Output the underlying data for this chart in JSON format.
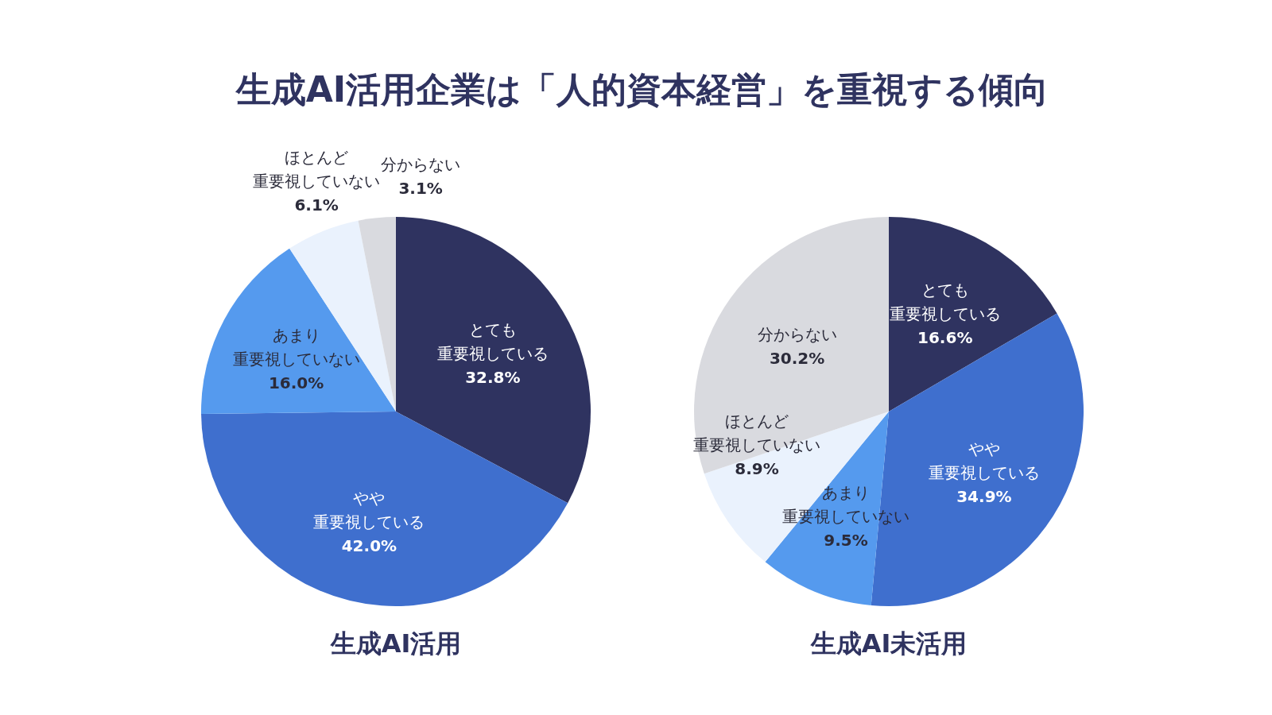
{
  "chart_data": [
    {
      "type": "pie",
      "title": "生成AI活用",
      "annotations": [
        "生成AI活用企業は「人的資本経営」を重視する傾向"
      ],
      "categories": [
        "とても重要視している",
        "やや重要視している",
        "あまり重要視していない",
        "ほとんど重要視していない",
        "分からない"
      ],
      "values": [
        32.8,
        42.0,
        16.0,
        6.1,
        3.1
      ],
      "value_labels": [
        "32.8%",
        "42.0%",
        "16.0%",
        "6.1%",
        "3.1%"
      ],
      "colors": [
        "#2f3360",
        "#3f6fce",
        "#559aee",
        "#eaf2fd",
        "#d9dadf"
      ]
    },
    {
      "type": "pie",
      "title": "生成AI未活用",
      "categories": [
        "とても重要視している",
        "やや重要視している",
        "あまり重要視していない",
        "ほとんど重要視していない",
        "分からない"
      ],
      "values": [
        16.6,
        34.9,
        9.5,
        8.9,
        30.2
      ],
      "value_labels": [
        "16.6%",
        "34.9%",
        "9.5%",
        "8.9%",
        "30.2%"
      ],
      "colors": [
        "#2f3360",
        "#3f6fce",
        "#559aee",
        "#eaf2fd",
        "#d9dadf"
      ]
    }
  ]
}
